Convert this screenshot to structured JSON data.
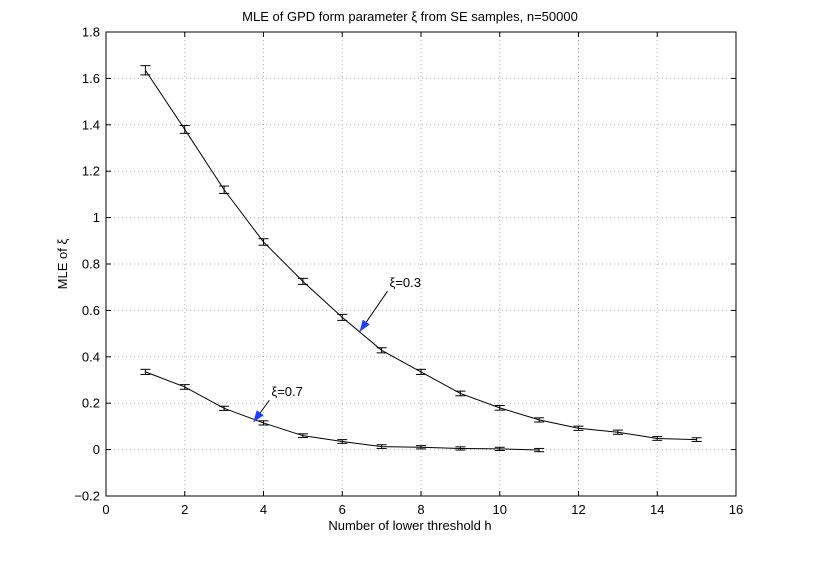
{
  "chart_data": {
    "type": "line",
    "title": "MLE of GPD form parameter ξ from SE samples, n=50000",
    "xlabel": "Number of lower threshold h",
    "ylabel": "MLE of ξ",
    "xlim": [
      0,
      16
    ],
    "ylim": [
      -0.2,
      1.8
    ],
    "xticks": [
      0,
      2,
      4,
      6,
      8,
      10,
      12,
      14,
      16
    ],
    "xtick_labels": [
      "0",
      "2",
      "4",
      "6",
      "8",
      "10",
      "12",
      "14",
      "16"
    ],
    "yticks": [
      -0.2,
      0,
      0.2,
      0.4,
      0.6,
      0.8,
      1,
      1.2,
      1.4,
      1.6,
      1.8
    ],
    "ytick_labels": [
      "−0.2",
      "0",
      "0.2",
      "0.4",
      "0.6",
      "0.8",
      "1",
      "1.2",
      "1.4",
      "1.6",
      "1.8"
    ],
    "grid": true,
    "colors": {
      "line": "#000000",
      "arrow": "#1f3fff",
      "grid": "#b0b0b0"
    },
    "series": [
      {
        "x": [
          1,
          2,
          3,
          4,
          5,
          6,
          7,
          8,
          9,
          10,
          11,
          12,
          13,
          14,
          15
        ],
        "values": [
          1.635,
          1.38,
          1.12,
          0.895,
          0.725,
          0.57,
          0.428,
          0.335,
          0.242,
          0.18,
          0.128,
          0.092,
          0.075,
          0.048,
          0.043
        ],
        "err": [
          0.02,
          0.017,
          0.016,
          0.014,
          0.013,
          0.013,
          0.011,
          0.011,
          0.01,
          0.01,
          0.009,
          0.009,
          0.009,
          0.008,
          0.008
        ]
      },
      {
        "x": [
          1,
          2,
          3,
          4,
          5,
          6,
          7,
          8,
          9,
          10,
          11
        ],
        "values": [
          0.335,
          0.27,
          0.178,
          0.115,
          0.06,
          0.035,
          0.013,
          0.01,
          0.005,
          0.003,
          -0.002
        ],
        "err": [
          0.011,
          0.01,
          0.009,
          0.009,
          0.008,
          0.008,
          0.008,
          0.007,
          0.007,
          0.007,
          0.007
        ]
      }
    ],
    "annotations": [
      {
        "text": "ξ=0.3",
        "point": [
          6.45,
          0.51
        ],
        "text_at": [
          7.2,
          0.7
        ]
      },
      {
        "text": "ξ=0.7",
        "point": [
          3.75,
          0.12
        ],
        "text_at": [
          4.2,
          0.23
        ]
      }
    ]
  }
}
